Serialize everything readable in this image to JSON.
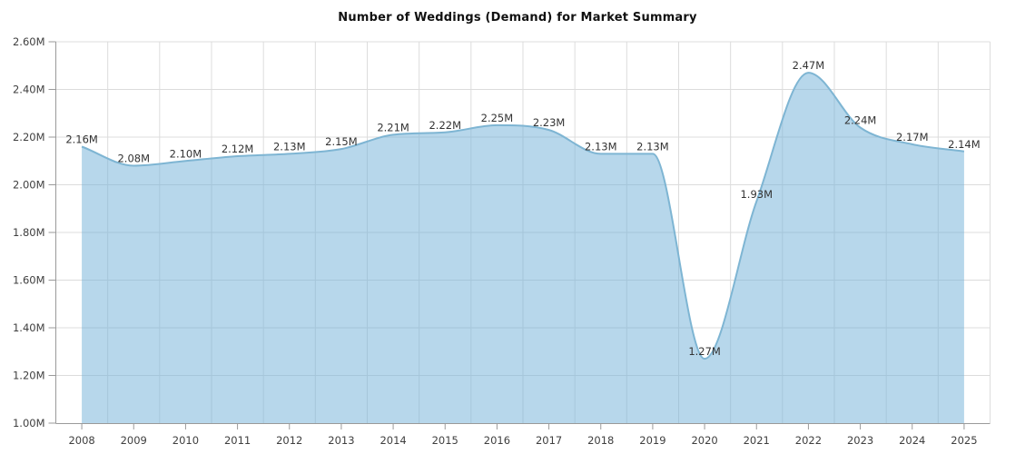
{
  "chart_data": {
    "type": "area",
    "title": "Number of Weddings (Demand) for Market Summary",
    "categories": [
      "2008",
      "2009",
      "2010",
      "2011",
      "2012",
      "2013",
      "2014",
      "2015",
      "2016",
      "2017",
      "2018",
      "2019",
      "2020",
      "2021",
      "2022",
      "2023",
      "2024",
      "2025"
    ],
    "values": [
      2.16,
      2.08,
      2.1,
      2.12,
      2.13,
      2.15,
      2.21,
      2.22,
      2.25,
      2.23,
      2.13,
      2.13,
      1.27,
      1.93,
      2.47,
      2.24,
      2.17,
      2.14
    ],
    "data_labels": [
      "2.16M",
      "2.08M",
      "2.10M",
      "2.12M",
      "2.13M",
      "2.15M",
      "2.21M",
      "2.22M",
      "2.25M",
      "2.23M",
      "2.13M",
      "2.13M",
      "1.27M",
      "1.93M",
      "2.47M",
      "2.24M",
      "2.17M",
      "2.14M"
    ],
    "xlabel": "",
    "ylabel": "",
    "ylim": [
      1.0,
      2.6
    ],
    "y_step": 0.2,
    "y_tick_labels": [
      "2.60M",
      "2.40M",
      "2.20M",
      "2.00M",
      "1.80M",
      "1.60M",
      "1.40M",
      "1.20M",
      "1.00M"
    ],
    "grid": true,
    "legend": false,
    "smoothing": "monotone",
    "colors": {
      "area_fill": "#6fb0d8",
      "area_fill_opacity": 0.5,
      "line": "#7eb5d3",
      "grid": "#dcdcdc",
      "axis": "#9a9a9a",
      "tick_label": "#3f3f3f",
      "data_label": "#333333",
      "title": "#111111",
      "background": "#ffffff"
    }
  }
}
